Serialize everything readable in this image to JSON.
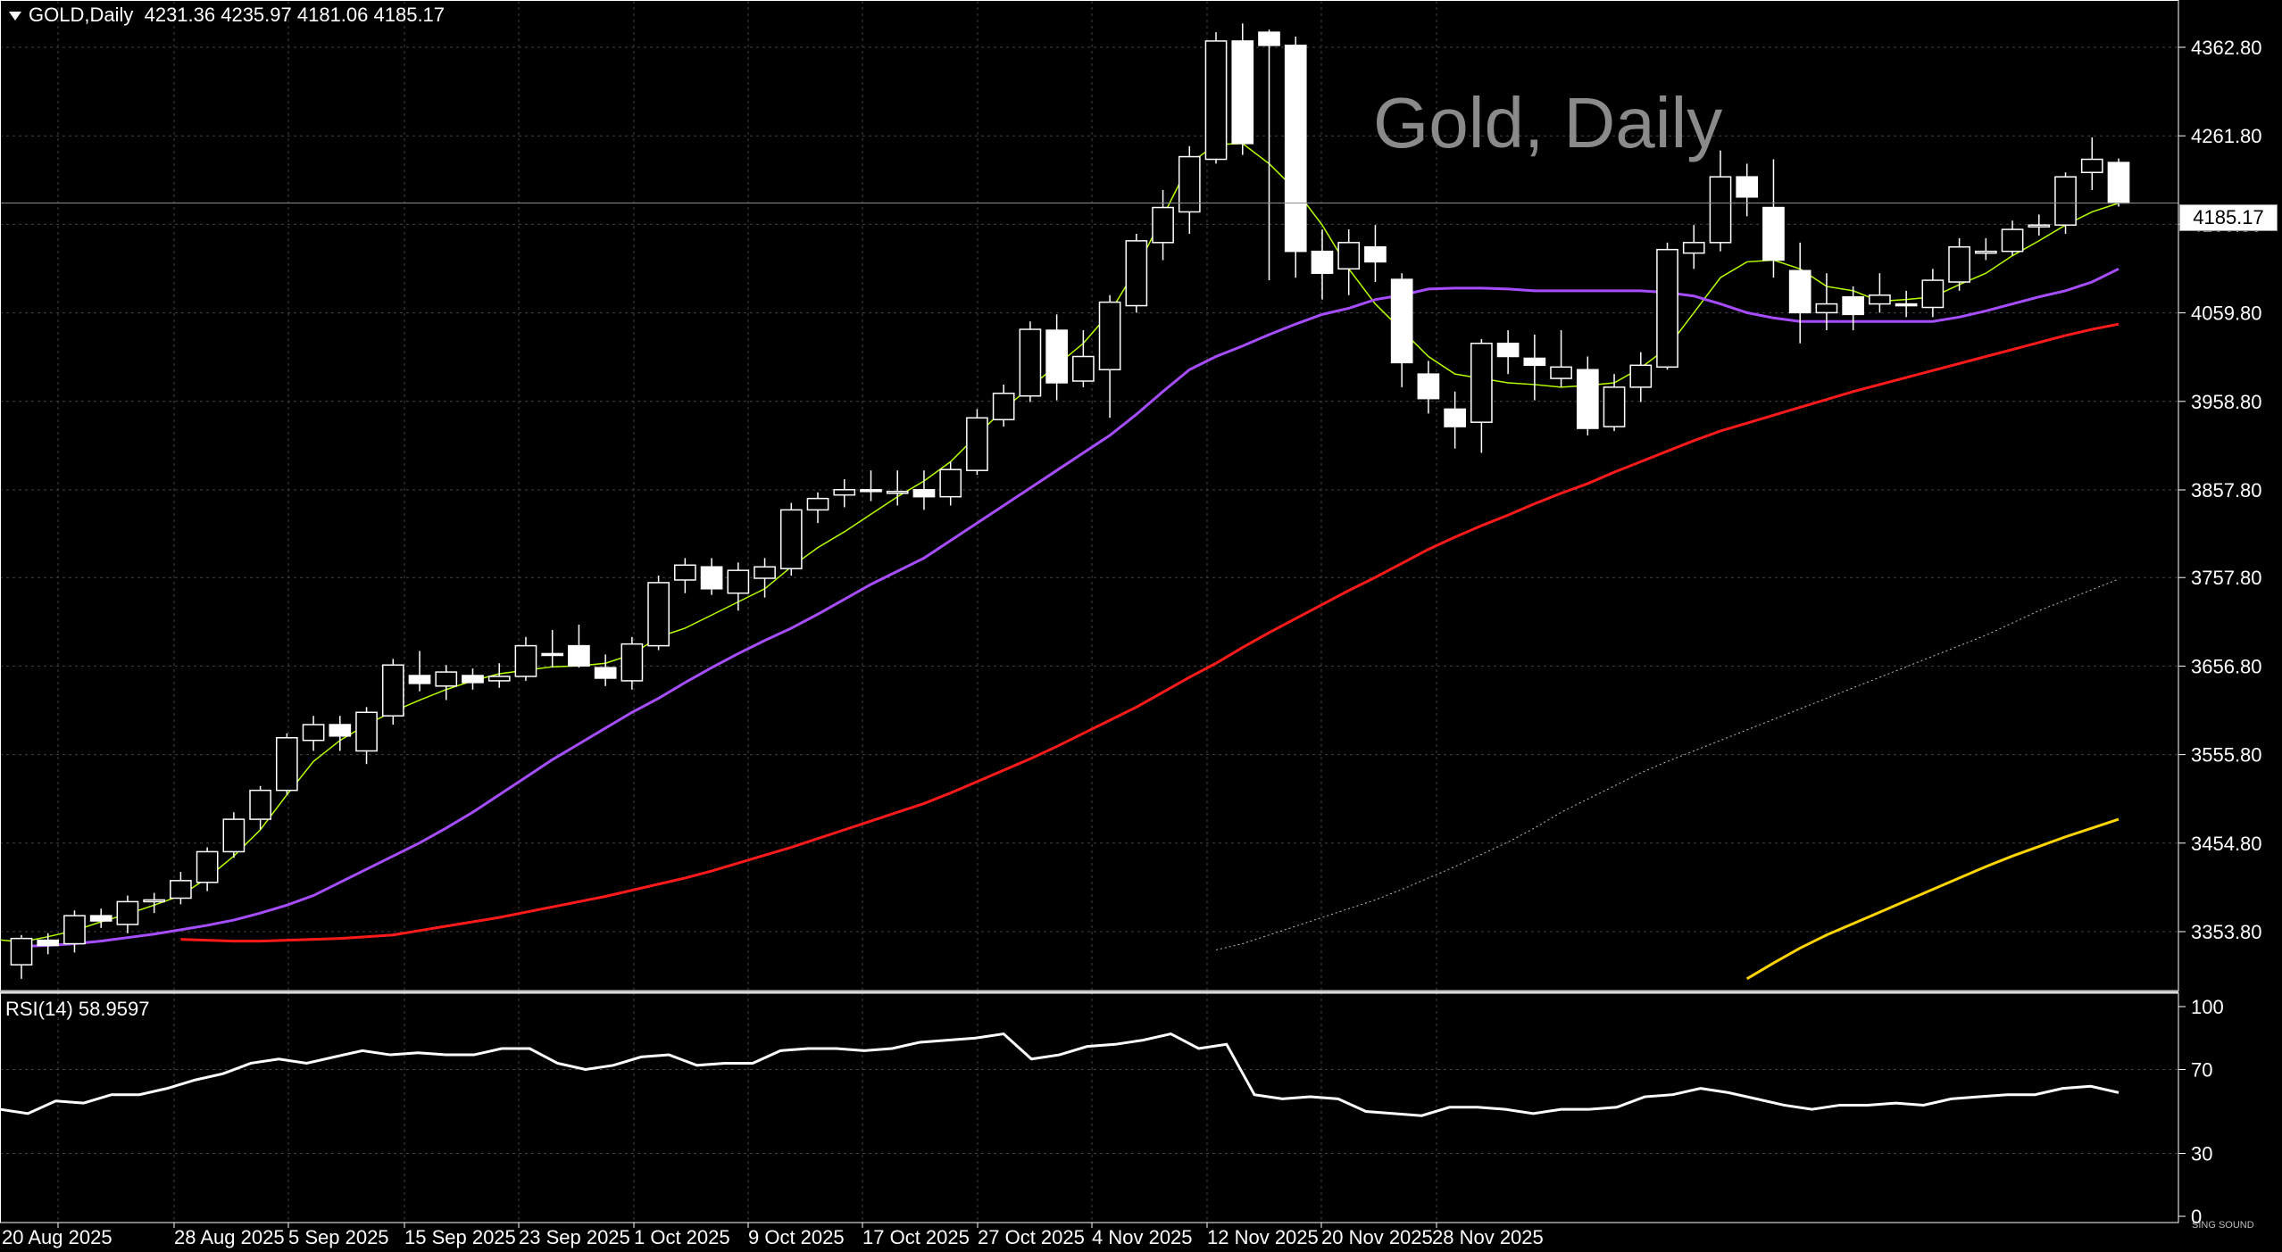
{
  "header": {
    "symbol": "GOLD,Daily",
    "ohlc": "4231.36 4235.97 4181.06 4185.17"
  },
  "watermark": "Gold, Daily",
  "current_price": "4185.17",
  "rsi_label": "RSI(14) 58.9597",
  "brand": "SING SOUND",
  "colors": {
    "background": "#000000",
    "grid": "#444444",
    "candle_bull": "#000000",
    "candle_bear": "#ffffff",
    "ma_fast": "#b6ff00",
    "ma_mid": "#a64dff",
    "ma_slow": "#ff1a1a",
    "ma_200": "#bfbfbf",
    "ma_long": "#ffd400",
    "rsi_line": "#ffffff"
  },
  "chart_data": [
    {
      "type": "candlestick",
      "title": "Gold, Daily",
      "x_tick_labels": [
        "20 Aug 2025",
        "28 Aug 2025",
        "5 Sep 2025",
        "15 Sep 2025",
        "23 Sep 2025",
        "1 Oct 2025",
        "9 Oct 2025",
        "17 Oct 2025",
        "27 Oct 2025",
        "4 Nov 2025",
        "12 Nov 2025",
        "20 Nov 2025",
        "28 Nov 2025"
      ],
      "y_tick_labels": [
        "4362.80",
        "4261.80",
        "4160.80",
        "4059.80",
        "3958.80",
        "3857.80",
        "3757.80",
        "3656.80",
        "3555.80",
        "3454.80",
        "3353.80"
      ],
      "ylim": [
        3300,
        4395
      ],
      "candles": [
        {
          "o": 3316,
          "h": 3350,
          "l": 3300,
          "c": 3346
        },
        {
          "o": 3344,
          "h": 3352,
          "l": 3328,
          "c": 3338
        },
        {
          "o": 3340,
          "h": 3378,
          "l": 3330,
          "c": 3372
        },
        {
          "o": 3372,
          "h": 3380,
          "l": 3358,
          "c": 3366
        },
        {
          "o": 3362,
          "h": 3395,
          "l": 3352,
          "c": 3388
        },
        {
          "o": 3388,
          "h": 3398,
          "l": 3375,
          "c": 3390
        },
        {
          "o": 3392,
          "h": 3422,
          "l": 3385,
          "c": 3412
        },
        {
          "o": 3410,
          "h": 3450,
          "l": 3400,
          "c": 3445
        },
        {
          "o": 3445,
          "h": 3490,
          "l": 3438,
          "c": 3482
        },
        {
          "o": 3482,
          "h": 3520,
          "l": 3470,
          "c": 3515
        },
        {
          "o": 3515,
          "h": 3580,
          "l": 3510,
          "c": 3575
        },
        {
          "o": 3572,
          "h": 3600,
          "l": 3560,
          "c": 3590
        },
        {
          "o": 3590,
          "h": 3600,
          "l": 3560,
          "c": 3577
        },
        {
          "o": 3560,
          "h": 3610,
          "l": 3545,
          "c": 3604
        },
        {
          "o": 3600,
          "h": 3665,
          "l": 3590,
          "c": 3658
        },
        {
          "o": 3646,
          "h": 3674,
          "l": 3628,
          "c": 3637
        },
        {
          "o": 3634,
          "h": 3658,
          "l": 3618,
          "c": 3650
        },
        {
          "o": 3646,
          "h": 3654,
          "l": 3630,
          "c": 3638
        },
        {
          "o": 3640,
          "h": 3660,
          "l": 3632,
          "c": 3645
        },
        {
          "o": 3645,
          "h": 3690,
          "l": 3640,
          "c": 3680
        },
        {
          "o": 3671,
          "h": 3698,
          "l": 3655,
          "c": 3670
        },
        {
          "o": 3680,
          "h": 3704,
          "l": 3655,
          "c": 3657
        },
        {
          "o": 3655,
          "h": 3670,
          "l": 3634,
          "c": 3643
        },
        {
          "o": 3640,
          "h": 3690,
          "l": 3630,
          "c": 3682
        },
        {
          "o": 3680,
          "h": 3760,
          "l": 3675,
          "c": 3752
        },
        {
          "o": 3755,
          "h": 3780,
          "l": 3740,
          "c": 3772
        },
        {
          "o": 3770,
          "h": 3780,
          "l": 3738,
          "c": 3745
        },
        {
          "o": 3740,
          "h": 3775,
          "l": 3720,
          "c": 3766
        },
        {
          "o": 3757,
          "h": 3780,
          "l": 3735,
          "c": 3770
        },
        {
          "o": 3768,
          "h": 3843,
          "l": 3760,
          "c": 3835
        },
        {
          "o": 3835,
          "h": 3855,
          "l": 3820,
          "c": 3848
        },
        {
          "o": 3852,
          "h": 3870,
          "l": 3838,
          "c": 3858
        },
        {
          "o": 3858,
          "h": 3880,
          "l": 3845,
          "c": 3856
        },
        {
          "o": 3856,
          "h": 3880,
          "l": 3840,
          "c": 3856
        },
        {
          "o": 3858,
          "h": 3880,
          "l": 3835,
          "c": 3850
        },
        {
          "o": 3850,
          "h": 3890,
          "l": 3840,
          "c": 3881
        },
        {
          "o": 3880,
          "h": 3950,
          "l": 3875,
          "c": 3940
        },
        {
          "o": 3938,
          "h": 3978,
          "l": 3930,
          "c": 3968
        },
        {
          "o": 3965,
          "h": 4050,
          "l": 3958,
          "c": 4041
        },
        {
          "o": 4040,
          "h": 4058,
          "l": 3960,
          "c": 3980
        },
        {
          "o": 3982,
          "h": 4040,
          "l": 3975,
          "c": 4010
        },
        {
          "o": 3995,
          "h": 4080,
          "l": 3940,
          "c": 4072
        },
        {
          "o": 4068,
          "h": 4150,
          "l": 4060,
          "c": 4142
        },
        {
          "o": 4140,
          "h": 4200,
          "l": 4120,
          "c": 4180
        },
        {
          "o": 4175,
          "h": 4250,
          "l": 4150,
          "c": 4238
        },
        {
          "o": 4235,
          "h": 4380,
          "l": 4230,
          "c": 4370
        },
        {
          "o": 4370,
          "h": 4390,
          "l": 4240,
          "c": 4253
        },
        {
          "o": 4380,
          "h": 4383,
          "l": 4097,
          "c": 4365
        },
        {
          "o": 4365,
          "h": 4375,
          "l": 4100,
          "c": 4130
        },
        {
          "o": 4130,
          "h": 4155,
          "l": 4075,
          "c": 4105
        },
        {
          "o": 4110,
          "h": 4155,
          "l": 4080,
          "c": 4140
        },
        {
          "o": 4135,
          "h": 4160,
          "l": 4095,
          "c": 4118
        },
        {
          "o": 4098,
          "h": 4105,
          "l": 3975,
          "c": 4003
        },
        {
          "o": 3990,
          "h": 4005,
          "l": 3945,
          "c": 3962
        },
        {
          "o": 3950,
          "h": 3970,
          "l": 3905,
          "c": 3930
        },
        {
          "o": 3935,
          "h": 4030,
          "l": 3900,
          "c": 4025
        },
        {
          "o": 4025,
          "h": 4040,
          "l": 3990,
          "c": 4010
        },
        {
          "o": 4008,
          "h": 4035,
          "l": 3960,
          "c": 4000
        },
        {
          "o": 3985,
          "h": 4040,
          "l": 3975,
          "c": 3998
        },
        {
          "o": 3995,
          "h": 4010,
          "l": 3920,
          "c": 3928
        },
        {
          "o": 3930,
          "h": 3990,
          "l": 3925,
          "c": 3975
        },
        {
          "o": 3975,
          "h": 4015,
          "l": 3958,
          "c": 4000
        },
        {
          "o": 3998,
          "h": 4140,
          "l": 3995,
          "c": 4132
        },
        {
          "o": 4128,
          "h": 4160,
          "l": 4110,
          "c": 4140
        },
        {
          "o": 4140,
          "h": 4245,
          "l": 4130,
          "c": 4215
        },
        {
          "o": 4215,
          "h": 4230,
          "l": 4170,
          "c": 4192
        },
        {
          "o": 4180,
          "h": 4235,
          "l": 4100,
          "c": 4120
        },
        {
          "o": 4108,
          "h": 4140,
          "l": 4025,
          "c": 4060
        },
        {
          "o": 4060,
          "h": 4105,
          "l": 4040,
          "c": 4070
        },
        {
          "o": 4078,
          "h": 4090,
          "l": 4040,
          "c": 4058
        },
        {
          "o": 4070,
          "h": 4105,
          "l": 4060,
          "c": 4080
        },
        {
          "o": 4070,
          "h": 4085,
          "l": 4055,
          "c": 4068
        },
        {
          "o": 4066,
          "h": 4110,
          "l": 4055,
          "c": 4097
        },
        {
          "o": 4095,
          "h": 4145,
          "l": 4085,
          "c": 4135
        },
        {
          "o": 4130,
          "h": 4145,
          "l": 4120,
          "c": 4130
        },
        {
          "o": 4130,
          "h": 4165,
          "l": 4125,
          "c": 4155
        },
        {
          "o": 4158,
          "h": 4172,
          "l": 4148,
          "c": 4160
        },
        {
          "o": 4160,
          "h": 4220,
          "l": 4150,
          "c": 4215
        },
        {
          "o": 4220,
          "h": 4260,
          "l": 4200,
          "c": 4235
        },
        {
          "o": 4231.36,
          "h": 4235.97,
          "l": 4181.06,
          "c": 4185.17
        }
      ],
      "series": [
        {
          "name": "",
          "color": "#b6ff00",
          "values": [
            3345,
            3342,
            3348,
            3355,
            3365,
            3374,
            3384,
            3395,
            3415,
            3440,
            3470,
            3510,
            3548,
            3572,
            3590,
            3605,
            3618,
            3630,
            3640,
            3648,
            3652,
            3656,
            3657,
            3660,
            3670,
            3690,
            3700,
            3715,
            3730,
            3745,
            3770,
            3792,
            3810,
            3830,
            3850,
            3868,
            3890,
            3920,
            3950,
            3975,
            4000,
            4025,
            4060,
            4110,
            4170,
            4230,
            4252,
            4253,
            4230,
            4200,
            4160,
            4110,
            4070,
            4040,
            4010,
            3990,
            3985,
            3980,
            3978,
            3975,
            3977,
            3980,
            3997,
            4020,
            4060,
            4100,
            4118,
            4120,
            4110,
            4090,
            4085,
            4073,
            4075,
            4078,
            4092,
            4105,
            4125,
            4142,
            4160,
            4175,
            4185
          ]
        },
        {
          "name": "",
          "color": "#a64dff",
          "values": [
            3337,
            3338,
            3340,
            3343,
            3347,
            3351,
            3356,
            3361,
            3367,
            3375,
            3384,
            3395,
            3410,
            3425,
            3440,
            3455,
            3472,
            3490,
            3510,
            3530,
            3550,
            3568,
            3586,
            3604,
            3620,
            3638,
            3655,
            3671,
            3686,
            3700,
            3716,
            3733,
            3750,
            3765,
            3780,
            3800,
            3820,
            3840,
            3860,
            3880,
            3900,
            3920,
            3944,
            3970,
            3995,
            4010,
            4022,
            4035,
            4047,
            4058,
            4065,
            4075,
            4080,
            4087,
            4088,
            4088,
            4087,
            4085,
            4085,
            4085,
            4085,
            4085,
            4083,
            4079,
            4070,
            4060,
            4054,
            4050,
            4050,
            4050,
            4050,
            4050,
            4050,
            4055,
            4062,
            4070,
            4078,
            4085,
            4095,
            4110
          ]
        },
        {
          "name": "",
          "color": "#ff1a1a",
          "values": [
            3345,
            3344,
            3343,
            3343,
            3344,
            3345,
            3346,
            3348,
            3350,
            3355,
            3360,
            3365,
            3370,
            3376,
            3382,
            3388,
            3394,
            3401,
            3408,
            3415,
            3423,
            3432,
            3441,
            3450,
            3460,
            3470,
            3480,
            3490,
            3500,
            3512,
            3525,
            3538,
            3551,
            3565,
            3580,
            3595,
            3610,
            3627,
            3644,
            3660,
            3678,
            3695,
            3711,
            3727,
            3743,
            3758,
            3774,
            3790,
            3804,
            3817,
            3829,
            3842,
            3854,
            3865,
            3878,
            3890,
            3902,
            3914,
            3925,
            3934,
            3943,
            3952,
            3961,
            3970,
            3978,
            3986,
            3994,
            4002,
            4010,
            4018,
            4026,
            4034,
            4041,
            4047
          ]
        },
        {
          "name": "",
          "color": "#bfbfbf",
          "values": [
            3333,
            3340,
            3350,
            3360,
            3370,
            3380,
            3390,
            3402,
            3415,
            3428,
            3442,
            3456,
            3472,
            3490,
            3505,
            3520,
            3535,
            3548,
            3560,
            3572,
            3584,
            3596,
            3608,
            3620,
            3632,
            3644,
            3656,
            3668,
            3680,
            3692,
            3706,
            3720,
            3732,
            3744,
            3756
          ]
        },
        {
          "name": "",
          "color": "#ffd400",
          "values": [
            3300,
            3318,
            3335,
            3350,
            3363,
            3376,
            3389,
            3402,
            3415,
            3428,
            3440,
            3451,
            3462,
            3472,
            3482
          ]
        }
      ]
    },
    {
      "type": "line",
      "title": "RSI(14) 58.9597",
      "y_tick_labels": [
        "100",
        "70",
        "30",
        "0"
      ],
      "ylim": [
        0,
        100
      ],
      "series": [
        {
          "name": "RSI(14)",
          "color": "#ffffff",
          "values": [
            51,
            49,
            55,
            54,
            58,
            58,
            61,
            65,
            68,
            73,
            75,
            73,
            76,
            79,
            77,
            78,
            77,
            77,
            80,
            80,
            73,
            70,
            72,
            76,
            77,
            72,
            73,
            73,
            79,
            80,
            80,
            79,
            80,
            83,
            84,
            85,
            87,
            75,
            77,
            81,
            82,
            84,
            87,
            80,
            82,
            58,
            56,
            57,
            56,
            50,
            49,
            48,
            52,
            52,
            51,
            49,
            51,
            51,
            52,
            57,
            58,
            61,
            59,
            56,
            53,
            51,
            53,
            53,
            54,
            53,
            56,
            57,
            58,
            58,
            61,
            62,
            59
          ]
        }
      ]
    }
  ]
}
